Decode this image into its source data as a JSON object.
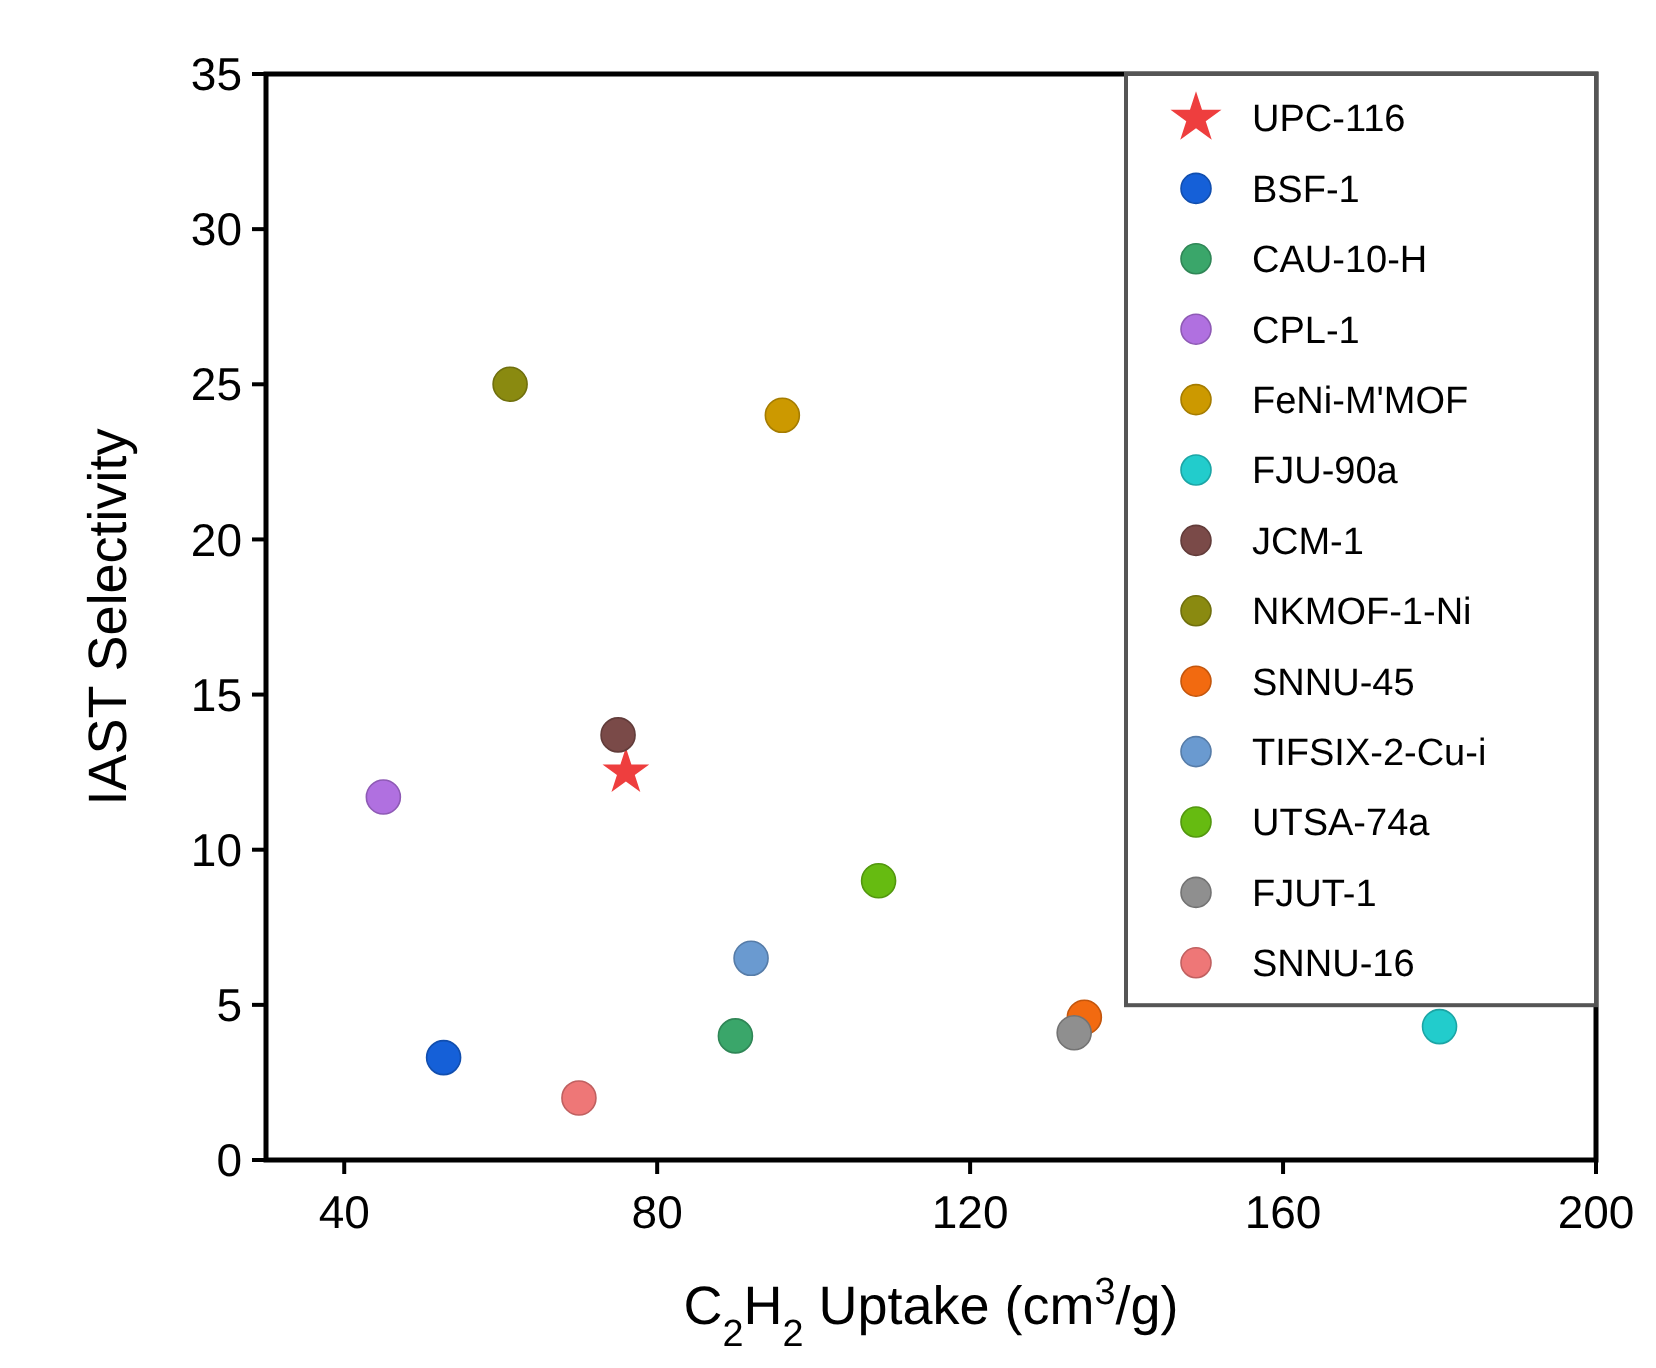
{
  "chart_data": {
    "type": "scatter",
    "xlabel": "C$_{2}$H$_{2}$ Uptake (cm$^{3}$/g)",
    "ylabel": "IAST Selectivity",
    "xlim": [
      30,
      200
    ],
    "xticks": [
      40,
      80,
      120,
      160,
      200
    ],
    "ylim": [
      0,
      35
    ],
    "yticks": [
      0,
      5,
      10,
      15,
      20,
      25,
      30,
      35
    ],
    "grid": false,
    "legend": "top right",
    "series": [
      {
        "name": "UPC-116",
        "color": "#ee3e3e",
        "marker": "star",
        "x": [
          76
        ],
        "values": [
          12.5
        ]
      },
      {
        "name": "BSF-1",
        "color": "#1560d8",
        "marker": "circle",
        "x": [
          52.7
        ],
        "values": [
          3.3
        ]
      },
      {
        "name": "CAU-10-H",
        "color": "#3aa66a",
        "marker": "circle",
        "x": [
          90
        ],
        "values": [
          4
        ]
      },
      {
        "name": "CPL-1",
        "color": "#b070e0",
        "marker": "circle",
        "x": [
          45
        ],
        "values": [
          11.7
        ]
      },
      {
        "name": "FeNi-M'MOF",
        "color": "#cc9900",
        "marker": "circle",
        "x": [
          96
        ],
        "values": [
          24
        ]
      },
      {
        "name": "FJU-90a",
        "color": "#22cccc",
        "marker": "circle",
        "x": [
          180
        ],
        "values": [
          4.3
        ]
      },
      {
        "name": "JCM-1",
        "color": "#7a4a48",
        "marker": "circle",
        "x": [
          75
        ],
        "values": [
          13.7
        ]
      },
      {
        "name": "NKMOF-1-Ni",
        "color": "#8a8a10",
        "marker": "circle",
        "x": [
          61.2
        ],
        "values": [
          25
        ]
      },
      {
        "name": "SNNU-45",
        "color": "#f26a10",
        "marker": "circle",
        "x": [
          134.6
        ],
        "values": [
          4.6
        ]
      },
      {
        "name": "TIFSIX-2-Cu-i",
        "color": "#6a9ad0",
        "marker": "circle",
        "x": [
          92
        ],
        "values": [
          6.5
        ]
      },
      {
        "name": "UTSA-74a",
        "color": "#66bb11",
        "marker": "circle",
        "x": [
          108.3
        ],
        "values": [
          9
        ]
      },
      {
        "name": "FJUT-1",
        "color": "#8f8f8f",
        "marker": "circle",
        "x": [
          133.3
        ],
        "values": [
          4.1
        ]
      },
      {
        "name": "SNNU-16",
        "color": "#ee7777",
        "marker": "circle",
        "x": [
          70
        ],
        "values": [
          2
        ]
      }
    ]
  }
}
